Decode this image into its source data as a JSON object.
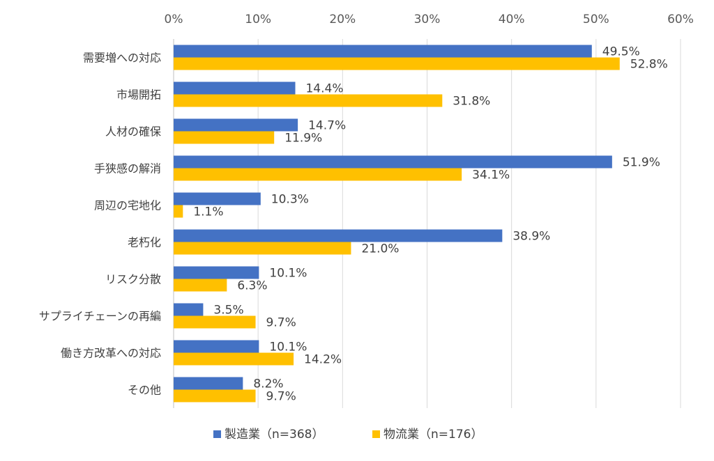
{
  "chart_data": {
    "type": "bar",
    "orientation": "horizontal",
    "categories": [
      "需要増への対応",
      "市場開拓",
      "人材の確保",
      "手狭感の解消",
      "周辺の宅地化",
      "老朽化",
      "リスク分散",
      "サプライチェーンの再編",
      "働き方改革への対応",
      "その他"
    ],
    "series": [
      {
        "name": "製造業（n=368）",
        "color": "#4472C4",
        "values": [
          49.5,
          14.4,
          14.7,
          51.9,
          10.3,
          38.9,
          10.1,
          3.5,
          10.1,
          8.2
        ]
      },
      {
        "name": "物流業（n=176）",
        "color": "#FFC000",
        "values": [
          52.8,
          31.8,
          11.9,
          34.1,
          1.1,
          21.0,
          6.3,
          9.7,
          14.2,
          9.7
        ]
      }
    ],
    "data_labels": [
      [
        "49.5%",
        "14.4%",
        "14.7%",
        "51.9%",
        "10.3%",
        "38.9%",
        "10.1%",
        "3.5%",
        "10.1%",
        "8.2%"
      ],
      [
        "52.8%",
        "31.8%",
        "11.9%",
        "34.1%",
        "1.1%",
        "21.0%",
        "6.3%",
        "9.7%",
        "14.2%",
        "9.7%"
      ]
    ],
    "xlim": [
      0,
      60
    ],
    "xticks": [
      "0%",
      "10%",
      "20%",
      "30%",
      "40%",
      "50%",
      "60%"
    ],
    "x_axis_position": "top",
    "grid": true,
    "legend_position": "bottom"
  }
}
